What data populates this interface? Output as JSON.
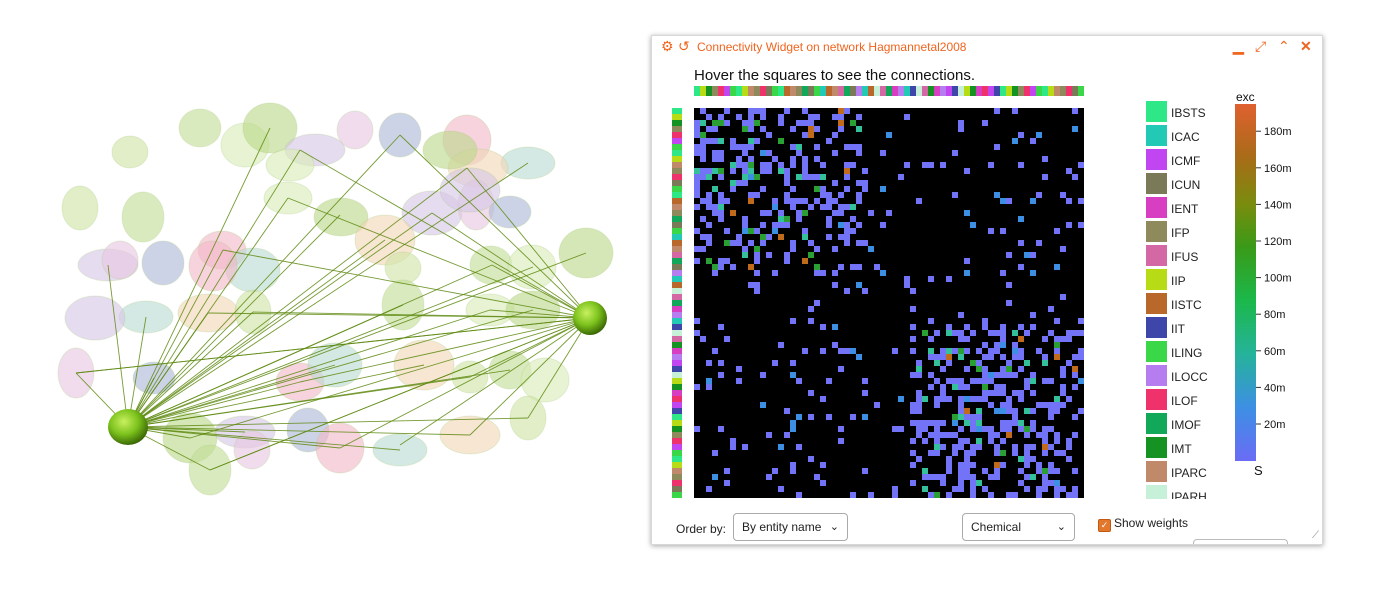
{
  "widget": {
    "title": "Connectivity Widget on network Hagmannetal2008",
    "hint": "Hover the squares to see the connections.",
    "icons": {
      "settings": "gear-icon",
      "reset": "history-icon",
      "minimize": "minimize-icon",
      "maximize": "maximize-icon",
      "collapse": "chevron-up-icon",
      "close": "close-icon"
    }
  },
  "legend": [
    {
      "label": "IBSTS",
      "color": "#2ee887"
    },
    {
      "label": "ICAC",
      "color": "#22c9b4"
    },
    {
      "label": "ICMF",
      "color": "#c146f2"
    },
    {
      "label": "ICUN",
      "color": "#7a7a58"
    },
    {
      "label": "IENT",
      "color": "#d83ec2"
    },
    {
      "label": "IFP",
      "color": "#8f8a5c"
    },
    {
      "label": "IFUS",
      "color": "#d468a4"
    },
    {
      "label": "IIP",
      "color": "#b7dc16"
    },
    {
      "label": "IISTC",
      "color": "#b8682a"
    },
    {
      "label": "IIT",
      "color": "#3e47a9"
    },
    {
      "label": "ILING",
      "color": "#3ad848"
    },
    {
      "label": "ILOCC",
      "color": "#b57df0"
    },
    {
      "label": "ILOF",
      "color": "#f0326c"
    },
    {
      "label": "IMOF",
      "color": "#12a85a"
    },
    {
      "label": "IMT",
      "color": "#149322"
    },
    {
      "label": "IPARC",
      "color": "#c08a6a"
    },
    {
      "label": "IPARH",
      "color": "#c6f0d8"
    }
  ],
  "colorbar": {
    "top_label": "exc",
    "bottom_label": "S",
    "ticks": [
      "20m",
      "40m",
      "60m",
      "80m",
      "100m",
      "120m",
      "140m",
      "160m",
      "180m"
    ]
  },
  "controls": {
    "order_label": "Order by:",
    "order_value": "By entity name",
    "type_value": "Chemical",
    "show_weights_label": "Show weights",
    "show_weights_checked": true
  },
  "viewer": {
    "highlight_color": "#7ec820",
    "edge_color": "#5e8a10",
    "ghost_color": "#c9e29a"
  }
}
